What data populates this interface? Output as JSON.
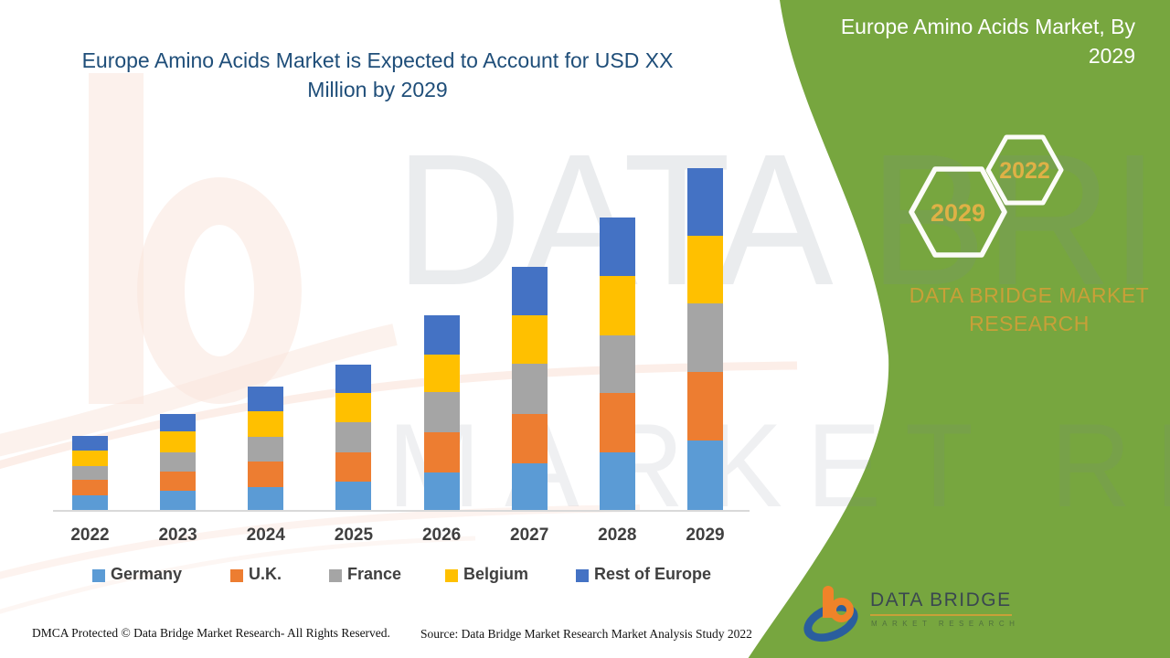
{
  "main_title": "Europe Amino Acids Market is Expected to Account for USD XX Million by 2029",
  "panel": {
    "title": "Europe Amino Acids Market, By 2029",
    "badges": [
      "2029",
      "2022"
    ],
    "brand": "DATA BRIDGE MARKET RESEARCH",
    "background_color": "#77A63F",
    "badge_text_color": "#DFB146"
  },
  "watermark": {
    "line1": "DATA BRIDGE",
    "line2": "MARKET RESEARCH"
  },
  "logo": {
    "name": "DATA BRIDGE",
    "tagline": "MARKET RESEARCH"
  },
  "footer": {
    "dmca": "DMCA Protected © Data Bridge Market Research- All Rights Reserved.",
    "source": "Source: Data Bridge Market Research Market Analysis Study 2022"
  },
  "chart_data": {
    "type": "bar",
    "stacked": true,
    "title": "Europe Amino Acids Market is Expected to Account for USD XX Million by 2029",
    "xlabel": "",
    "ylabel": "",
    "value_axis": "hidden (values masked as USD XX Million; series values below are proportional units estimated from bar heights)",
    "grid": false,
    "legend_position": "bottom",
    "categories": [
      "2022",
      "2023",
      "2024",
      "2025",
      "2026",
      "2027",
      "2028",
      "2029"
    ],
    "series": [
      {
        "name": "Germany",
        "color": "#5B9BD5",
        "values": [
          16,
          21,
          25,
          31,
          41,
          51,
          63,
          76
        ]
      },
      {
        "name": "U.K.",
        "color": "#ED7D31",
        "values": [
          17,
          21,
          28,
          32,
          44,
          54,
          65,
          75
        ]
      },
      {
        "name": "France",
        "color": "#A5A5A5",
        "values": [
          15,
          21,
          27,
          33,
          44,
          55,
          63,
          75
        ]
      },
      {
        "name": "Belgium",
        "color": "#FFC000",
        "values": [
          17,
          23,
          28,
          32,
          41,
          53,
          65,
          74
        ]
      },
      {
        "name": "Rest of Europe",
        "color": "#4472C4",
        "values": [
          16,
          19,
          27,
          31,
          43,
          53,
          64,
          74
        ]
      }
    ],
    "totals": [
      81,
      105,
      135,
      159,
      213,
      266,
      320,
      374
    ]
  }
}
